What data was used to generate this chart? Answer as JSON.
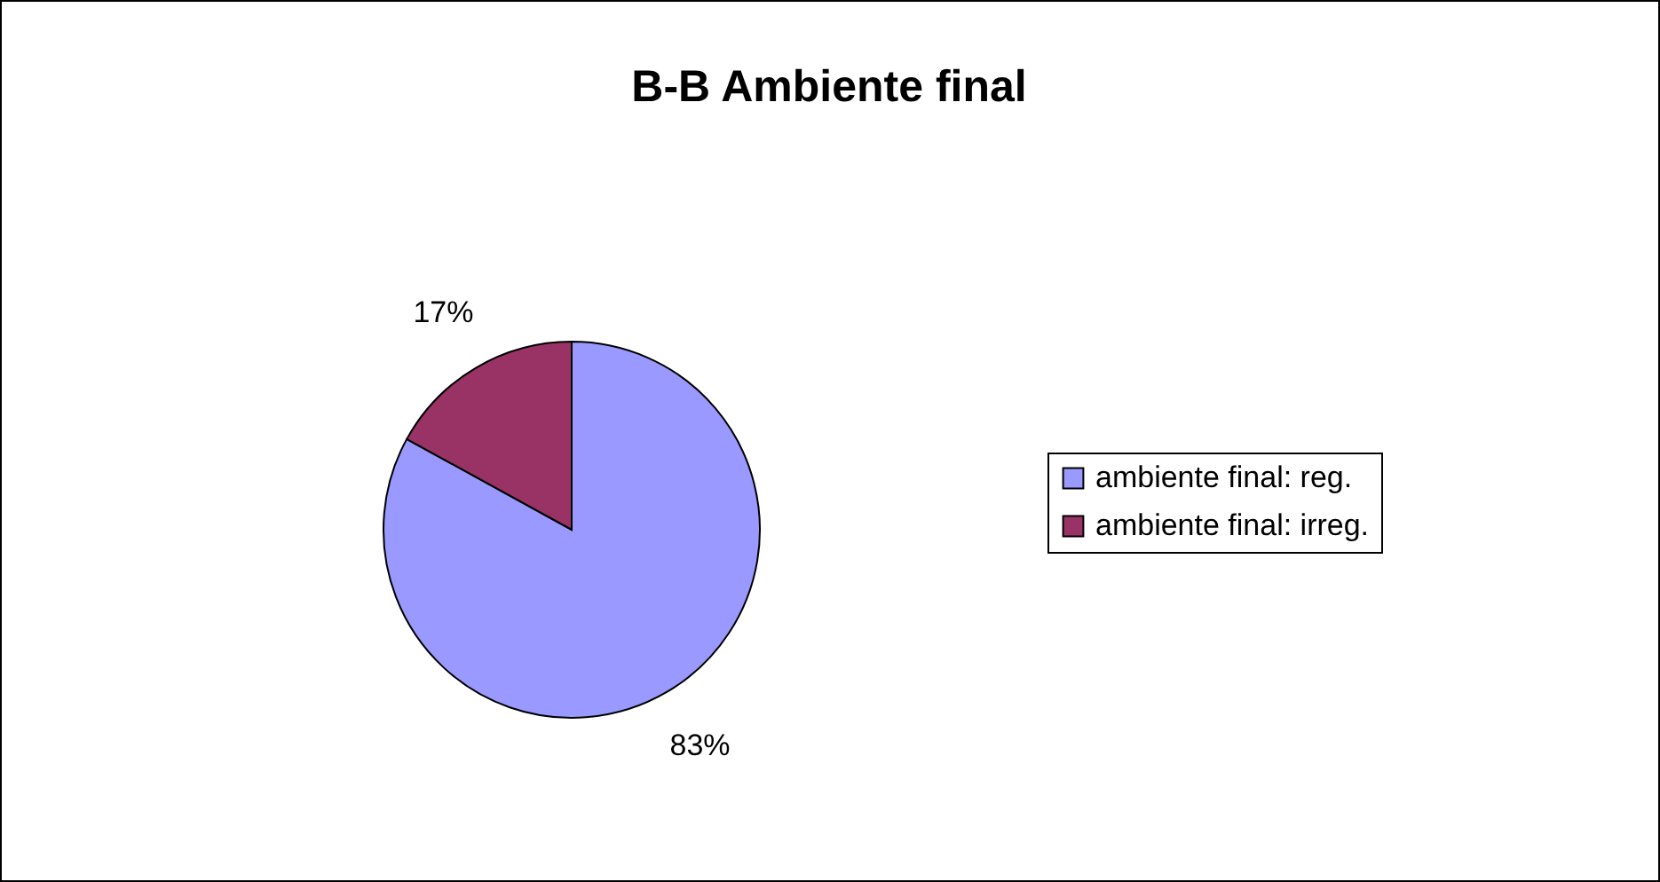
{
  "chart_data": {
    "type": "pie",
    "title": "B-B Ambiente final",
    "categories": [
      "ambiente final: reg.",
      "ambiente final: irreg."
    ],
    "values": [
      83,
      17
    ],
    "colors": [
      "#9999ff",
      "#993366"
    ],
    "value_labels": [
      "83%",
      "17%"
    ],
    "legend": "right"
  }
}
